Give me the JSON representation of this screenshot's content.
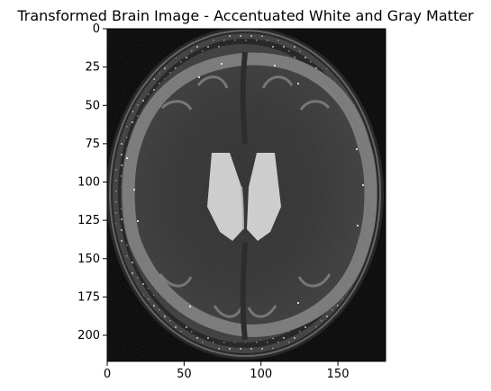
{
  "figure": {
    "title": "Transformed Brain Image - Accentuated White and Gray Matter",
    "image_cmap": "gray",
    "background_color": "#000000",
    "colors": {
      "csf_dark": "#2a2a2a",
      "gray_matter": "#7a7a7a",
      "white_matter": "#bdbdbd",
      "ventricles": "#c8c8c8",
      "skull_bright": "#e6e6e6"
    }
  },
  "axes": {
    "x_ticks": [
      {
        "value": 0,
        "label": "0"
      },
      {
        "value": 50,
        "label": "50"
      },
      {
        "value": 100,
        "label": "100"
      },
      {
        "value": 150,
        "label": "150"
      }
    ],
    "y_ticks": [
      {
        "value": 0,
        "label": "0"
      },
      {
        "value": 25,
        "label": "25"
      },
      {
        "value": 50,
        "label": "50"
      },
      {
        "value": 75,
        "label": "75"
      },
      {
        "value": 100,
        "label": "100"
      },
      {
        "value": 125,
        "label": "125"
      },
      {
        "value": 150,
        "label": "150"
      },
      {
        "value": 175,
        "label": "175"
      },
      {
        "value": 200,
        "label": "200"
      }
    ],
    "x_range": [
      0,
      181
    ],
    "y_range": [
      0,
      217
    ]
  }
}
